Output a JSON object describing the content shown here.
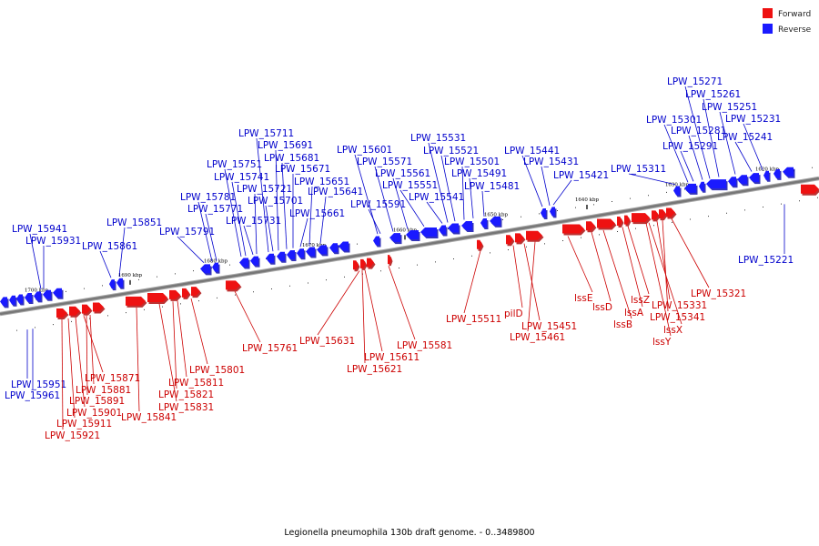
{
  "title": "Legionella pneumophila 130b draft genome. - 0..3489800",
  "colors": {
    "forward": "#ee1111",
    "forward_dark": "#aa0000",
    "reverse": "#1a1aff",
    "reverse_dark": "#0000aa",
    "backbone": "#777777",
    "forward_label": "#cc0000",
    "reverse_label": "#0000cc"
  },
  "legend": [
    {
      "key": "forward",
      "label": "Forward"
    },
    {
      "key": "reverse",
      "label": "Reverse"
    }
  ],
  "ticks": [
    "1700 kbp",
    "1690 kbp",
    "1680 kbp",
    "1670 kbp",
    "1660 kbp",
    "1650 kbp",
    "1640 kbp",
    "1630 kbp",
    "1620 kbp"
  ],
  "reverse_labels_above": [
    "LPW_15941",
    "LPW_15931",
    "LPW_15861",
    "LPW_15851",
    "LPW_15791",
    "LPW_15781",
    "LPW_15771",
    "LPW_15751",
    "LPW_15741",
    "LPW_15731",
    "LPW_15721",
    "LPW_15711",
    "LPW_15701",
    "LPW_15691",
    "LPW_15681",
    "LPW_15671",
    "LPW_15661",
    "LPW_15651",
    "LPW_15641",
    "LPW_15601",
    "LPW_15591",
    "LPW_15571",
    "LPW_15561",
    "LPW_15551",
    "LPW_15541",
    "LPW_15531",
    "LPW_15521",
    "LPW_15501",
    "LPW_15491",
    "LPW_15481",
    "LPW_15441",
    "LPW_15431",
    "LPW_15421",
    "LPW_15311",
    "LPW_15301",
    "LPW_15291",
    "LPW_15281",
    "LPW_15271",
    "LPW_15261",
    "LPW_15251",
    "LPW_15241",
    "LPW_15231"
  ],
  "reverse_labels_below": [
    "LPW_15951",
    "LPW_15961",
    "LPW_15221"
  ],
  "forward_labels": [
    "LPW_15871",
    "LPW_15881",
    "LPW_15891",
    "LPW_15901",
    "LPW_15911",
    "LPW_15921",
    "LPW_15841",
    "LPW_15831",
    "LPW_15821",
    "LPW_15811",
    "LPW_15801",
    "LPW_15761",
    "LPW_15631",
    "LPW_15611",
    "LPW_15621",
    "LPW_15581",
    "LPW_15511",
    "pilD",
    "LPW_15451",
    "LPW_15461",
    "lssE",
    "lssD",
    "lssB",
    "lssA",
    "lssZ",
    "lssX",
    "lssY",
    "LPW_15331",
    "LPW_15341",
    "LPW_15321"
  ]
}
